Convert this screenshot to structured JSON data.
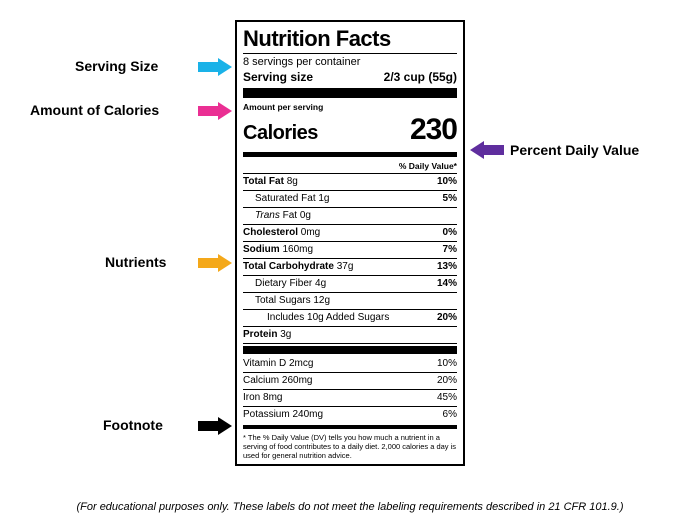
{
  "annotations": {
    "serving": {
      "text": "Serving Size",
      "color": "#1ab2e8"
    },
    "calories": {
      "text": "Amount of Calories",
      "color": "#ea2f93"
    },
    "dv": {
      "text": "Percent Daily Value",
      "color": "#5f2e9e"
    },
    "nutrients": {
      "text": "Nutrients",
      "color": "#f4a81a"
    },
    "footnote": {
      "text": "Footnote",
      "color": "#000000"
    }
  },
  "label": {
    "title": "Nutrition Facts",
    "servings_per": "8 servings per container",
    "serving_size_label": "Serving size",
    "serving_size_value": "2/3 cup (55g)",
    "amount_per_serving": "Amount per serving",
    "calories_label": "Calories",
    "calories_value": "230",
    "dv_header": "% Daily Value*",
    "rows": [
      {
        "label": "Total Fat",
        "amount": "8g",
        "dv": "10%",
        "bold": true,
        "indent": 0
      },
      {
        "label": "Saturated Fat",
        "amount": "1g",
        "dv": "5%",
        "bold": false,
        "indent": 1
      },
      {
        "label": "Trans Fat",
        "amount": "0g",
        "dv": "",
        "bold": false,
        "indent": 1,
        "italic_first": "Trans",
        "rest": " Fat"
      },
      {
        "label": "Cholesterol",
        "amount": "0mg",
        "dv": "0%",
        "bold": true,
        "indent": 0
      },
      {
        "label": "Sodium",
        "amount": "160mg",
        "dv": "7%",
        "bold": true,
        "indent": 0
      },
      {
        "label": "Total Carbohydrate",
        "amount": "37g",
        "dv": "13%",
        "bold": true,
        "indent": 0
      },
      {
        "label": "Dietary Fiber",
        "amount": "4g",
        "dv": "14%",
        "bold": false,
        "indent": 1
      },
      {
        "label": "Total Sugars",
        "amount": "12g",
        "dv": "",
        "bold": false,
        "indent": 1
      },
      {
        "label": "Includes 10g Added Sugars",
        "amount": "",
        "dv": "20%",
        "bold": false,
        "indent": 2
      },
      {
        "label": "Protein",
        "amount": "3g",
        "dv": "",
        "bold": true,
        "indent": 0
      }
    ],
    "vitamins": [
      {
        "label": "Vitamin D",
        "amount": "2mcg",
        "dv": "10%"
      },
      {
        "label": "Calcium",
        "amount": "260mg",
        "dv": "20%"
      },
      {
        "label": "Iron",
        "amount": "8mg",
        "dv": "45%"
      },
      {
        "label": "Potassium",
        "amount": "240mg",
        "dv": "6%"
      }
    ],
    "footnote": "* The % Daily Value (DV) tells you how much a nutrient in a serving of food contributes to a daily diet. 2,000 calories a day is used for general nutrition advice."
  },
  "disclaimer": "(For educational purposes only. These labels do not meet the labeling requirements described in 21 CFR 101.9.)",
  "highlight_colors": {
    "serving_bg": "#b9e5f4",
    "calories_bg": "#f9b0d0",
    "nutrients_bg": "#f8d79a",
    "dv_bg": "#e1d1f0"
  }
}
